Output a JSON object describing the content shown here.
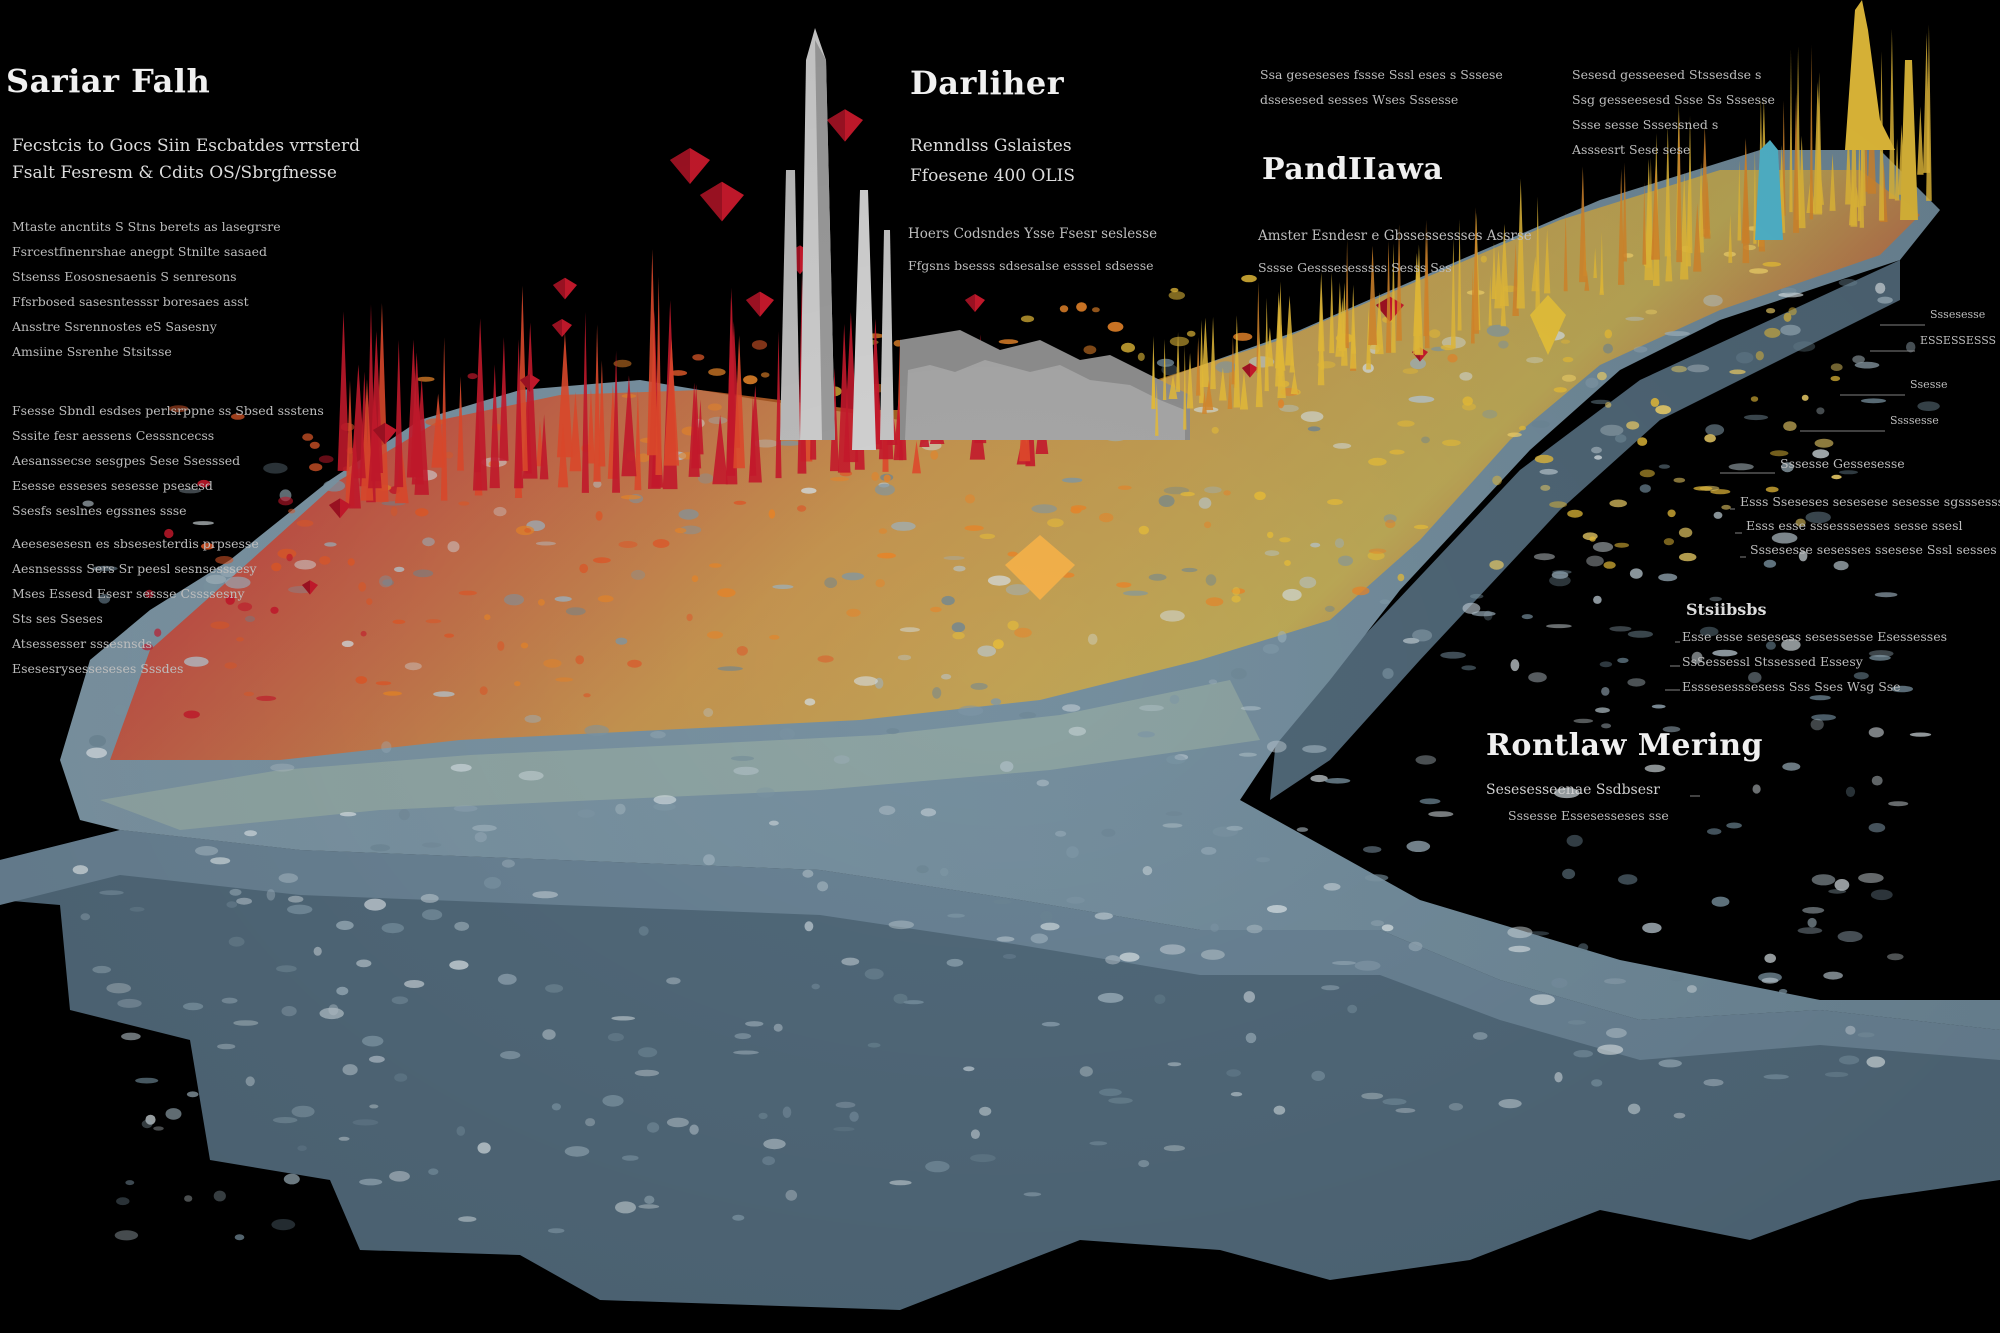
{
  "left_panel": {
    "title": "Sariar Falh",
    "subtitle_1": "Fecstcis to Gocs Siin Escbatdes vrrsterd",
    "subtitle_2": "Fsalt Fesresm & Cdits OS/Sbrgfnesse",
    "group_1": [
      "Mtaste ancntits S Stns berets as lasegrsre",
      "Fsrcestfinenrshae anegpt Stnilte sasaed",
      "Stsenss Eososnesaenis S senresons",
      "Ffsrbosed sasesntesssr boresaes asst",
      "Ansstre Ssrennostes eS Sasesny",
      "Amsiine Ssrenhe Stsitsse"
    ],
    "group_2": [
      "Fsesse Sbndl esdses perlsrppne ss Sbsed ssstens",
      "Sssite fesr aessens Cesssncecss",
      "Aesanssecse sesgpes Sese Ssesssed",
      "Esesse esseses sesesse psesesd",
      "Ssesfs seslnes egssnes ssse"
    ],
    "group_3": [
      "Aeesesesesn es sbsesesterdis prpsesse",
      "Aesnsessss Sers Sr peesl sesnsesssesy",
      "Mses Essesd Esesr sessse Cssssesny",
      "Sts ses Sseses",
      "Atsessesser sssesnsds",
      "Esesesrysesseseses Sssdes"
    ]
  },
  "center_panel": {
    "title": "Darliher",
    "subtitle_1": "Renndlss Gslaistes",
    "subtitle_2": "Ffoesene 400 OLIS",
    "line_1": "Hoers Codsndes Ysse Fsesr seslesse",
    "line_2": "Ffgsns bsesss sdsesalse esssel sdsesse"
  },
  "top_right_notes": {
    "col_1": [
      "Ssa geseseses fssse Sssl eses s Sssese",
      "dssesesed sesses Wses Sssesse"
    ],
    "col_2": [
      "Sesesd gesseesed Stssesdse s",
      "Ssg gesseesesd Ssse Ss Sssesse",
      "Ssse sesse Sssessned s",
      "Asssesrt Sese sese"
    ]
  },
  "right_panel": {
    "title": "PandIIawa",
    "line_1": "Amster Esndesr e Gbssessessses Assrse",
    "line_2": "Sssse Gesssesesssss Sesss Sss"
  },
  "right_edge_labels": [
    "Sssesesse",
    "ESSESSESSS",
    "Ssesse",
    "Ssssesse"
  ],
  "annotations": [
    "Sssesse Gessesesse",
    "Esss Sseseses sesesese sesesse sgsssesss",
    "Esss esse sssesssesses sesse ssesl",
    "Sssesesse sesesses ssesese Sssl sesses"
  ],
  "stats_block": {
    "title": "Stsiibsbs",
    "lines": [
      "Esse esse sesesess sesessesse Esessesses",
      "SsSessessl Stssessed Essesy",
      "Esssesesssesess Sss Sses Wsg Sse"
    ]
  },
  "bottom_right_panel": {
    "title": "Rontlaw Mering",
    "line_1": "Sesesesseenae Ssdbsesr",
    "line_2": "Sssesse Essesesseses sse"
  },
  "colors": {
    "background": "#000000",
    "terrain_base": "#5f7787",
    "terrain_top": "#8ea6b4",
    "peak_red": "#c8192c",
    "peak_orange": "#e8862a",
    "peak_yellow": "#e7bd3a",
    "tower_grey": "#c9c9c9",
    "accent_cyan": "#4ec3dd"
  },
  "icons": [
    "diamond-marker-icon",
    "tower-spike-icon",
    "leader-line-icon"
  ]
}
